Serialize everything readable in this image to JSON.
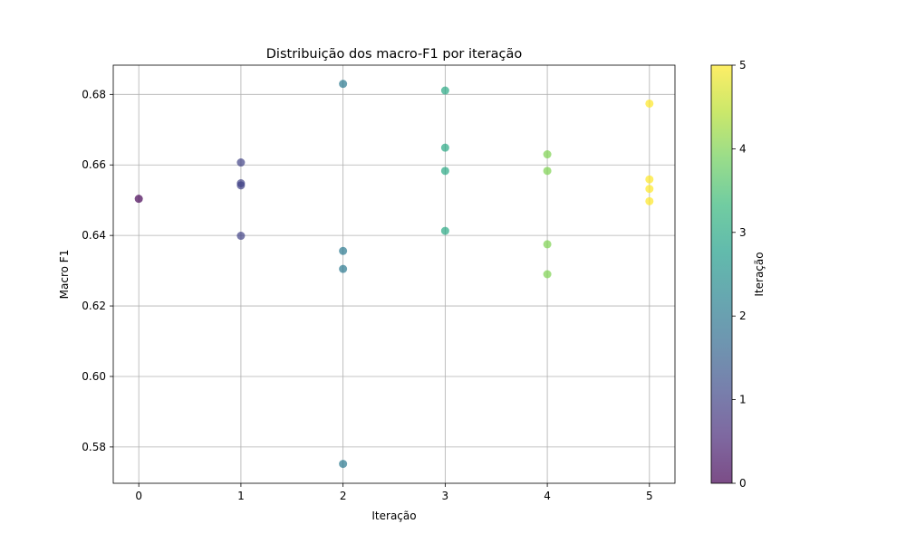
{
  "chart_data": {
    "type": "scatter",
    "title": "Distribuição dos macro-F1 por iteração",
    "xlabel": "Iteração",
    "ylabel": "Macro F1",
    "xlim": [
      -0.25,
      5.25
    ],
    "ylim": [
      0.5697,
      0.6883
    ],
    "xticks": [
      0,
      1,
      2,
      3,
      4,
      5
    ],
    "yticks": [
      0.58,
      0.6,
      0.62,
      0.64,
      0.66,
      0.68
    ],
    "grid": true,
    "points": [
      {
        "x": 0,
        "y": 0.6504
      },
      {
        "x": 1,
        "y": 0.6607
      },
      {
        "x": 1,
        "y": 0.6548
      },
      {
        "x": 1,
        "y": 0.6542
      },
      {
        "x": 1,
        "y": 0.6399
      },
      {
        "x": 2,
        "y": 0.683
      },
      {
        "x": 2,
        "y": 0.6356
      },
      {
        "x": 2,
        "y": 0.6305
      },
      {
        "x": 2,
        "y": 0.5752
      },
      {
        "x": 3,
        "y": 0.6811
      },
      {
        "x": 3,
        "y": 0.6649
      },
      {
        "x": 3,
        "y": 0.6583
      },
      {
        "x": 3,
        "y": 0.6413
      },
      {
        "x": 4,
        "y": 0.663
      },
      {
        "x": 4,
        "y": 0.6583
      },
      {
        "x": 4,
        "y": 0.6375
      },
      {
        "x": 4,
        "y": 0.629
      },
      {
        "x": 5,
        "y": 0.6774
      },
      {
        "x": 5,
        "y": 0.6559
      },
      {
        "x": 5,
        "y": 0.6532
      },
      {
        "x": 5,
        "y": 0.6497
      }
    ],
    "colormap": "viridis",
    "colormap_stops": [
      "#440154",
      "#482878",
      "#3e4989",
      "#31688e",
      "#26828e",
      "#1f9e89",
      "#35b779",
      "#6ece58",
      "#b5de2b",
      "#fde725"
    ],
    "point_alpha": 0.7,
    "colorbar": {
      "label": "Iteração",
      "range": [
        0,
        5
      ],
      "ticks": [
        0,
        1,
        2,
        3,
        4,
        5
      ]
    }
  }
}
